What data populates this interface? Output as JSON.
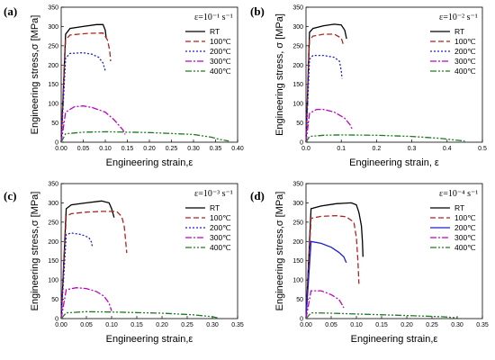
{
  "colors": {
    "RT": "#000000",
    "100": "#b22222",
    "200": "#1f1fd0",
    "300": "#c000c0",
    "400": "#207a20"
  },
  "chart_data": [
    {
      "type": "line",
      "panel": "(a)",
      "rate_label": "ε=10⁻¹ s⁻¹",
      "xlabel": "Engineering strain,ε",
      "ylabel": "Engineering stress,σ [MPa]",
      "xlim": [
        0,
        0.4
      ],
      "ylim": [
        0,
        350
      ],
      "xticks": [
        "0.00",
        "0.05",
        "0.10",
        "0.15",
        "0.20",
        "0.25",
        "0.30",
        "0.35",
        "0.40"
      ],
      "yticks": [
        "0",
        "50",
        "100",
        "150",
        "200",
        "250",
        "300",
        "350"
      ],
      "legend_position": "top-right",
      "series": [
        {
          "name": "RT",
          "color_key": "RT",
          "dash": "",
          "points": [
            [
              0,
              0
            ],
            [
              0.01,
              280
            ],
            [
              0.02,
              295
            ],
            [
              0.05,
              300
            ],
            [
              0.08,
              305
            ],
            [
              0.095,
              305
            ],
            [
              0.1,
              290
            ],
            [
              0.102,
              270
            ]
          ]
        },
        {
          "name": "100℃",
          "color_key": "100",
          "dash": "6,3",
          "points": [
            [
              0,
              0
            ],
            [
              0.01,
              265
            ],
            [
              0.02,
              278
            ],
            [
              0.06,
              282
            ],
            [
              0.095,
              283
            ],
            [
              0.105,
              265
            ],
            [
              0.11,
              238
            ],
            [
              0.112,
              210
            ]
          ]
        },
        {
          "name": "200℃",
          "color_key": "200",
          "dash": "2,2",
          "points": [
            [
              0,
              0
            ],
            [
              0.01,
              218
            ],
            [
              0.02,
              230
            ],
            [
              0.05,
              232
            ],
            [
              0.07,
              228
            ],
            [
              0.085,
              220
            ],
            [
              0.095,
              205
            ],
            [
              0.1,
              185
            ]
          ]
        },
        {
          "name": "300℃",
          "color_key": "300",
          "dash": "7,2,2,2",
          "points": [
            [
              0,
              0
            ],
            [
              0.01,
              78
            ],
            [
              0.03,
              92
            ],
            [
              0.05,
              94
            ],
            [
              0.07,
              90
            ],
            [
              0.1,
              78
            ],
            [
              0.12,
              58
            ],
            [
              0.14,
              32
            ],
            [
              0.145,
              20
            ]
          ]
        },
        {
          "name": "400℃",
          "color_key": "400",
          "dash": "7,2,2,2,2,2",
          "points": [
            [
              0,
              0
            ],
            [
              0.01,
              22
            ],
            [
              0.05,
              26
            ],
            [
              0.1,
              27
            ],
            [
              0.2,
              25
            ],
            [
              0.3,
              20
            ],
            [
              0.34,
              13
            ],
            [
              0.36,
              7
            ],
            [
              0.38,
              3
            ]
          ]
        }
      ]
    },
    {
      "type": "line",
      "panel": "(b)",
      "rate_label": "ε=10⁻² s⁻¹",
      "xlabel": "Engineering strain, ε",
      "ylabel": "Engineering stress, σ [MPa]",
      "xlim": [
        0,
        0.5
      ],
      "ylim": [
        0,
        350
      ],
      "xticks": [
        "0.0",
        "0.1",
        "0.2",
        "0.3",
        "0.4",
        "0.5"
      ],
      "yticks": [
        "0",
        "50",
        "100",
        "150",
        "200",
        "250",
        "300",
        "350"
      ],
      "legend_position": "top-right",
      "series": [
        {
          "name": "RT",
          "color_key": "RT",
          "dash": "",
          "points": [
            [
              0,
              0
            ],
            [
              0.01,
              285
            ],
            [
              0.02,
              295
            ],
            [
              0.05,
              302
            ],
            [
              0.08,
              306
            ],
            [
              0.1,
              304
            ],
            [
              0.11,
              290
            ],
            [
              0.115,
              268
            ]
          ]
        },
        {
          "name": "100℃",
          "color_key": "100",
          "dash": "6,3",
          "points": [
            [
              0,
              0
            ],
            [
              0.01,
              265
            ],
            [
              0.02,
              275
            ],
            [
              0.05,
              280
            ],
            [
              0.08,
              280
            ],
            [
              0.1,
              270
            ],
            [
              0.105,
              255
            ]
          ]
        },
        {
          "name": "200℃",
          "color_key": "200",
          "dash": "2,2",
          "points": [
            [
              0,
              0
            ],
            [
              0.01,
              215
            ],
            [
              0.02,
              225
            ],
            [
              0.05,
              225
            ],
            [
              0.08,
              220
            ],
            [
              0.095,
              210
            ],
            [
              0.1,
              185
            ],
            [
              0.102,
              165
            ]
          ]
        },
        {
          "name": "300℃",
          "color_key": "300",
          "dash": "7,2,2,2",
          "points": [
            [
              0,
              0
            ],
            [
              0.01,
              75
            ],
            [
              0.03,
              85
            ],
            [
              0.05,
              85
            ],
            [
              0.08,
              78
            ],
            [
              0.11,
              62
            ],
            [
              0.125,
              45
            ],
            [
              0.13,
              35
            ]
          ]
        },
        {
          "name": "400℃",
          "color_key": "400",
          "dash": "7,2,2,2,2,2",
          "points": [
            [
              0,
              0
            ],
            [
              0.01,
              15
            ],
            [
              0.05,
              18
            ],
            [
              0.1,
              19
            ],
            [
              0.2,
              18
            ],
            [
              0.3,
              15
            ],
            [
              0.38,
              10
            ],
            [
              0.43,
              5
            ],
            [
              0.45,
              3
            ]
          ]
        }
      ]
    },
    {
      "type": "line",
      "panel": "(c)",
      "rate_label": "ε=10⁻³ s⁻¹",
      "xlabel": "Engineering strain,ε",
      "ylabel": "Engineering stress,σ [MPa]",
      "xlim": [
        0,
        0.35
      ],
      "ylim": [
        0,
        350
      ],
      "xticks": [
        "0.00",
        "0.05",
        "0.10",
        "0.15",
        "0.20",
        "0.25",
        "0.30",
        "0.35"
      ],
      "yticks": [
        "0",
        "50",
        "100",
        "150",
        "200",
        "250",
        "300",
        "350"
      ],
      "legend_position": "top-right",
      "series": [
        {
          "name": "RT",
          "color_key": "RT",
          "dash": "",
          "points": [
            [
              0,
              0
            ],
            [
              0.01,
              285
            ],
            [
              0.02,
              295
            ],
            [
              0.05,
              300
            ],
            [
              0.08,
              305
            ],
            [
              0.095,
              300
            ],
            [
              0.1,
              285
            ],
            [
              0.105,
              262
            ]
          ]
        },
        {
          "name": "100℃",
          "color_key": "100",
          "dash": "6,3",
          "points": [
            [
              0,
              0
            ],
            [
              0.01,
              265
            ],
            [
              0.02,
              272
            ],
            [
              0.05,
              276
            ],
            [
              0.08,
              278
            ],
            [
              0.11,
              278
            ],
            [
              0.12,
              265
            ],
            [
              0.125,
              240
            ],
            [
              0.128,
              200
            ],
            [
              0.13,
              170
            ]
          ]
        },
        {
          "name": "200℃",
          "color_key": "200",
          "dash": "2,2",
          "points": [
            [
              0,
              0
            ],
            [
              0.01,
              218
            ],
            [
              0.02,
              222
            ],
            [
              0.04,
              218
            ],
            [
              0.055,
              210
            ],
            [
              0.06,
              198
            ],
            [
              0.062,
              185
            ]
          ]
        },
        {
          "name": "300℃",
          "color_key": "300",
          "dash": "7,2,2,2",
          "points": [
            [
              0,
              0
            ],
            [
              0.01,
              75
            ],
            [
              0.03,
              80
            ],
            [
              0.05,
              78
            ],
            [
              0.07,
              70
            ],
            [
              0.085,
              58
            ],
            [
              0.095,
              40
            ],
            [
              0.1,
              20
            ]
          ]
        },
        {
          "name": "400℃",
          "color_key": "400",
          "dash": "7,2,2,2,2,2",
          "points": [
            [
              0,
              0
            ],
            [
              0.01,
              15
            ],
            [
              0.05,
              18
            ],
            [
              0.1,
              17
            ],
            [
              0.2,
              14
            ],
            [
              0.26,
              10
            ],
            [
              0.3,
              5
            ],
            [
              0.31,
              2
            ]
          ]
        }
      ]
    },
    {
      "type": "line",
      "panel": "(d)",
      "rate_label": "ε=10⁻⁴ s⁻¹",
      "xlabel": "Engineering strain,ε",
      "ylabel": "Engineering stress,σ [MPa]",
      "xlim": [
        0,
        0.35
      ],
      "ylim": [
        0,
        350
      ],
      "xticks": [
        "0.00",
        "0.05",
        "0.10",
        "0.15",
        "0.20",
        "0.25",
        "0.30",
        "0.35"
      ],
      "yticks": [
        "0",
        "50",
        "100",
        "150",
        "200",
        "250",
        "300",
        "350"
      ],
      "legend_position": "top-right",
      "series": [
        {
          "name": "RT",
          "color_key": "RT",
          "dash": "",
          "points": [
            [
              0,
              0
            ],
            [
              0.01,
              285
            ],
            [
              0.03,
              292
            ],
            [
              0.06,
              298
            ],
            [
              0.09,
              300
            ],
            [
              0.1,
              295
            ],
            [
              0.105,
              275
            ],
            [
              0.11,
              240
            ],
            [
              0.112,
              200
            ],
            [
              0.113,
              160
            ]
          ]
        },
        {
          "name": "100℃",
          "color_key": "100",
          "dash": "6,3",
          "points": [
            [
              0,
              0
            ],
            [
              0.01,
              260
            ],
            [
              0.03,
              265
            ],
            [
              0.06,
              267
            ],
            [
              0.08,
              264
            ],
            [
              0.095,
              250
            ],
            [
              0.1,
              210
            ],
            [
              0.103,
              150
            ],
            [
              0.105,
              90
            ]
          ]
        },
        {
          "name": "200℃",
          "color_key": "200",
          "dash": "",
          "points": [
            [
              0,
              0
            ],
            [
              0.01,
              200
            ],
            [
              0.03,
              195
            ],
            [
              0.05,
              185
            ],
            [
              0.065,
              172
            ],
            [
              0.075,
              160
            ],
            [
              0.08,
              145
            ]
          ]
        },
        {
          "name": "300℃",
          "color_key": "300",
          "dash": "7,2,2,2",
          "points": [
            [
              0,
              0
            ],
            [
              0.01,
              72
            ],
            [
              0.03,
              72
            ],
            [
              0.05,
              62
            ],
            [
              0.065,
              50
            ],
            [
              0.07,
              40
            ],
            [
              0.075,
              28
            ]
          ]
        },
        {
          "name": "400℃",
          "color_key": "400",
          "dash": "7,2,2,2,2,2",
          "points": [
            [
              0,
              0
            ],
            [
              0.01,
              15
            ],
            [
              0.05,
              14
            ],
            [
              0.1,
              12
            ],
            [
              0.2,
              8
            ],
            [
              0.27,
              5
            ],
            [
              0.3,
              2
            ]
          ]
        }
      ]
    }
  ]
}
